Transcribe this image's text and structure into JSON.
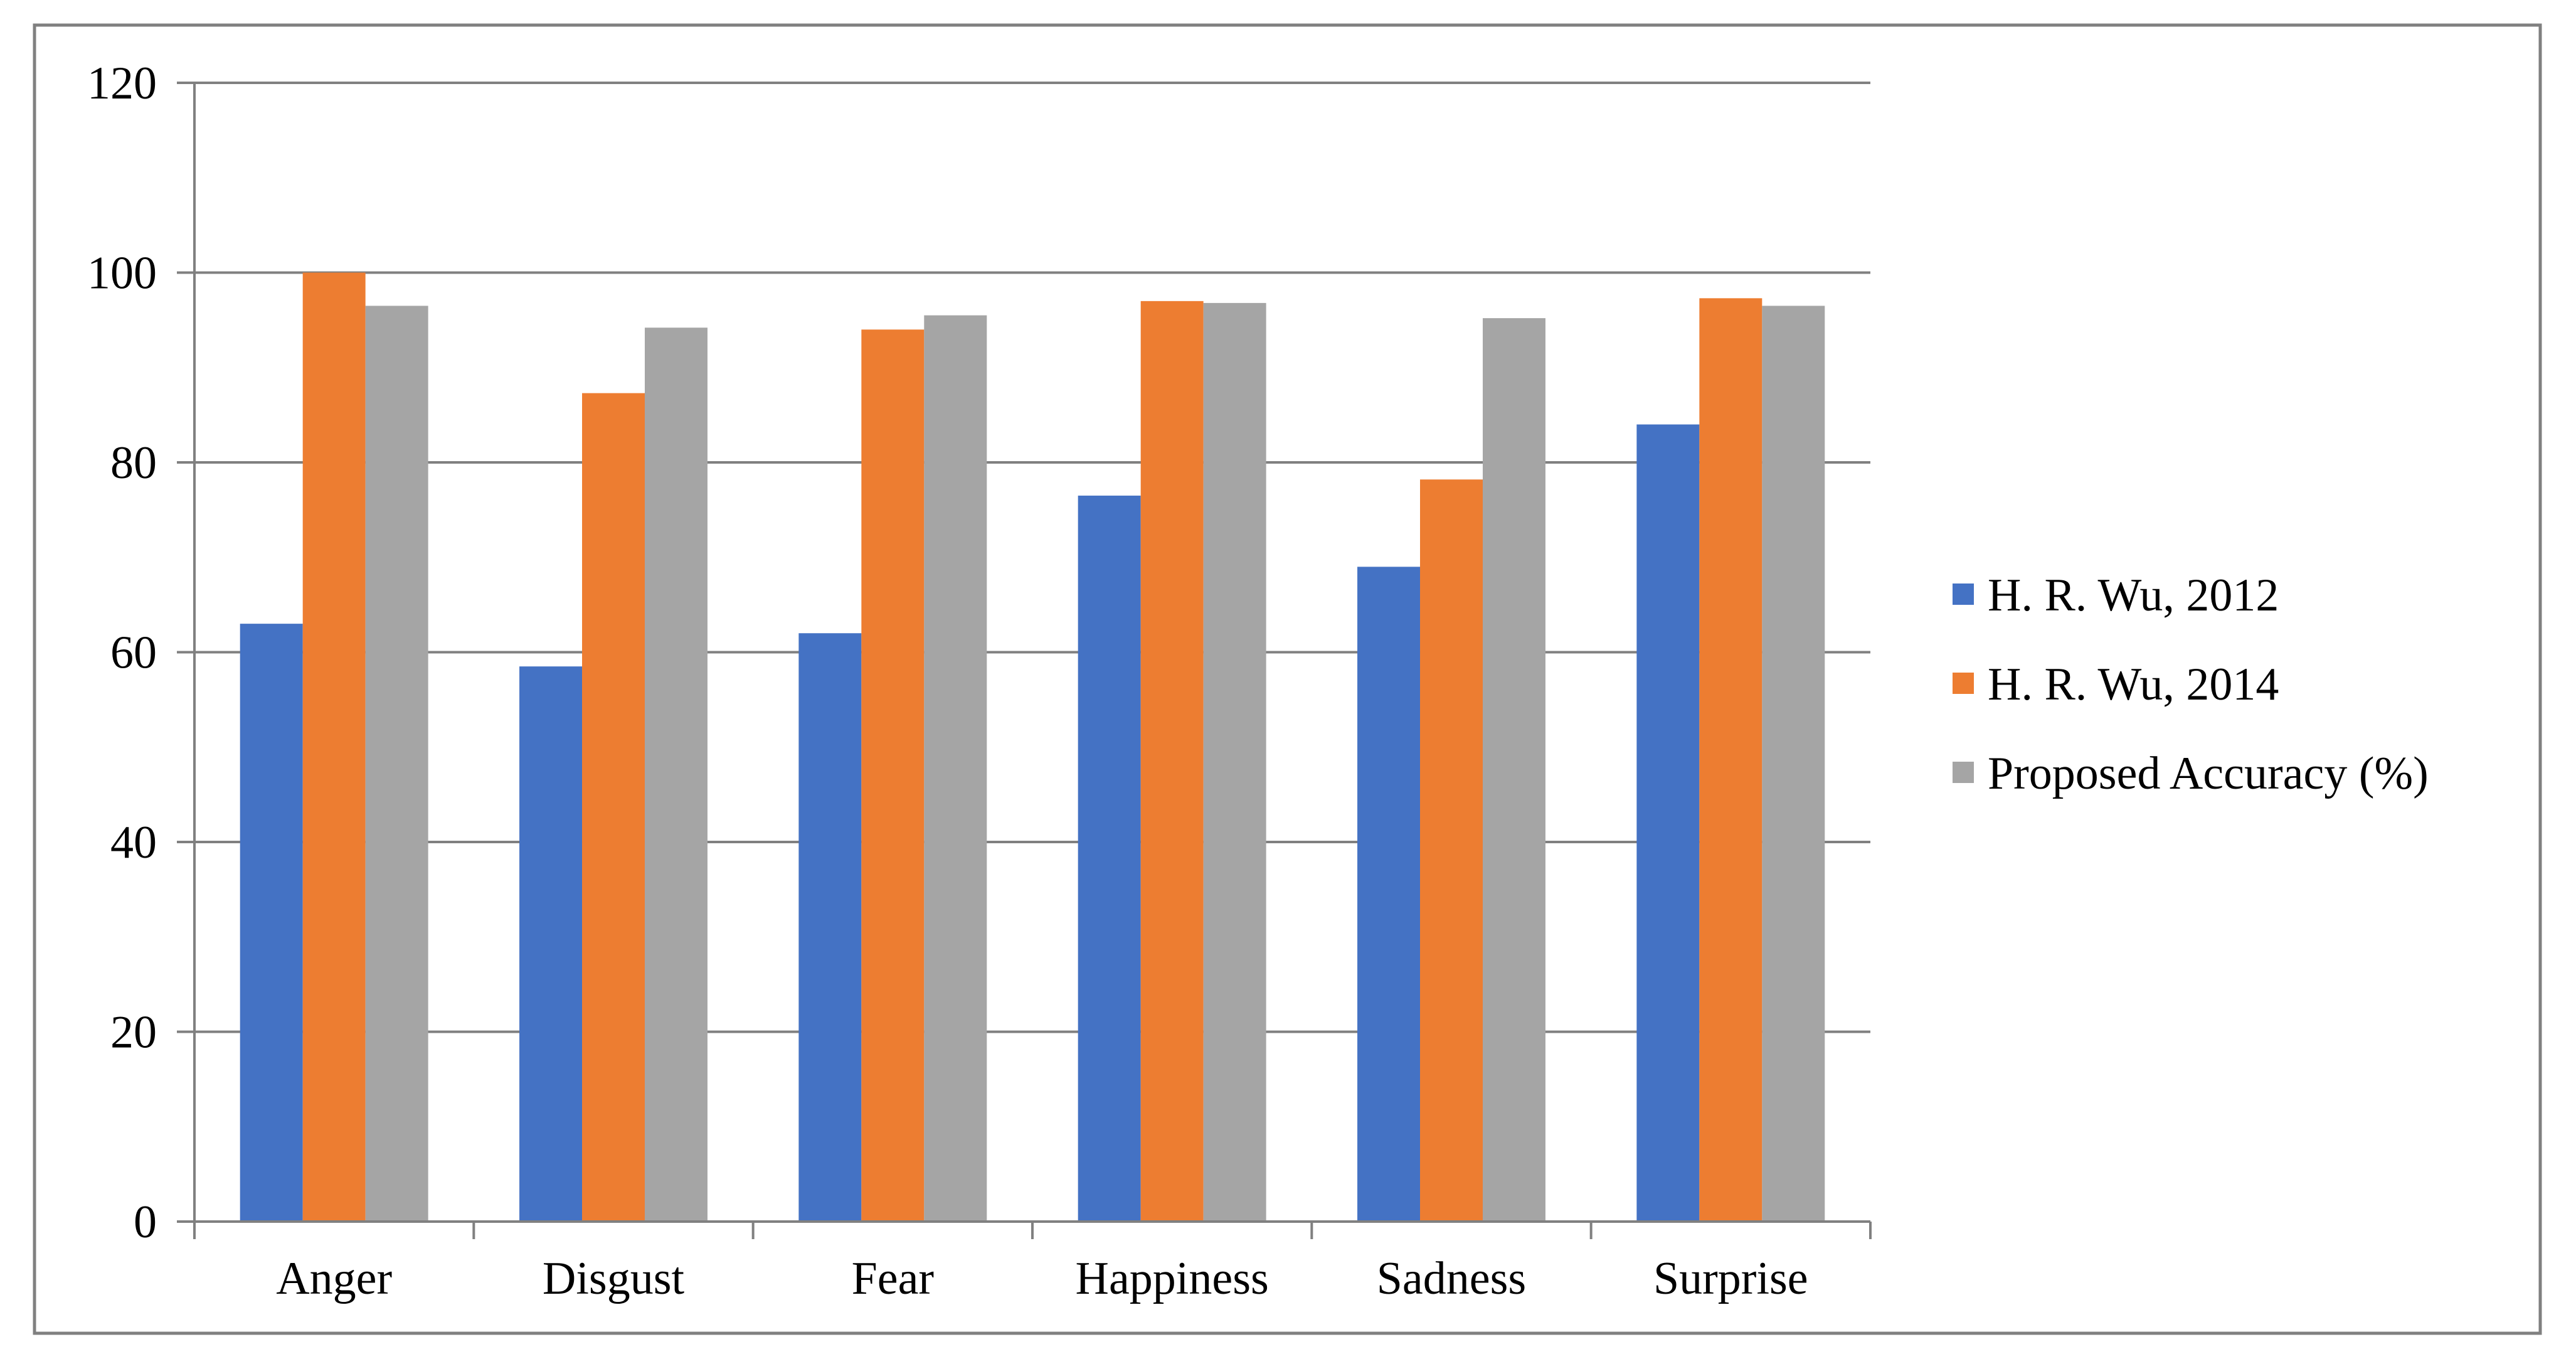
{
  "chart_data": {
    "type": "bar",
    "title": "",
    "xlabel": "",
    "ylabel": "",
    "ylim": [
      0,
      120
    ],
    "yticks": [
      0,
      20,
      40,
      60,
      80,
      100,
      120
    ],
    "grid": true,
    "legend_position": "right",
    "categories": [
      "Anger",
      "Disgust",
      "Fear",
      "Happiness",
      "Sadness",
      "Surprise"
    ],
    "series": [
      {
        "name": "H. R. Wu, 2012",
        "color": "#4472C4",
        "values": [
          63,
          58.5,
          62,
          76.5,
          69,
          84
        ]
      },
      {
        "name": "H. R. Wu, 2014",
        "color": "#ED7D31",
        "values": [
          100,
          87.3,
          94,
          97,
          78.2,
          97.3
        ]
      },
      {
        "name": "Proposed Accuracy (%)",
        "color": "#A5A5A5",
        "values": [
          96.5,
          94.2,
          95.5,
          96.8,
          95.2,
          96.5
        ]
      }
    ]
  }
}
